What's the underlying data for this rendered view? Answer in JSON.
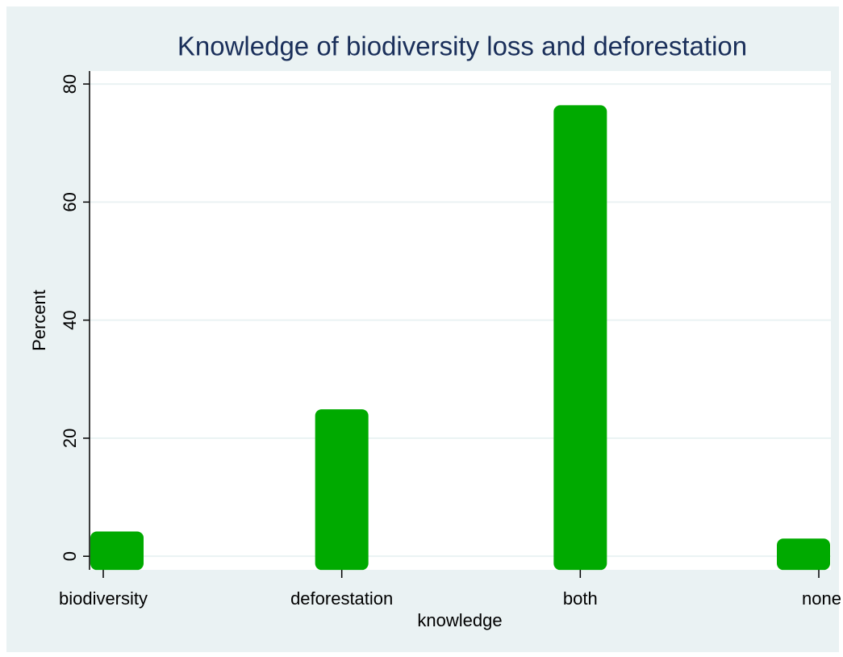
{
  "chart_data": {
    "type": "bar",
    "title": "Knowledge of biodiversity loss and deforestation",
    "x_label": "knowledge",
    "y_label": "Percent",
    "categories": [
      "biodiversity",
      "deforestation",
      "both",
      "none"
    ],
    "values": [
      4.2,
      24.9,
      76.4,
      3.0
    ],
    "color": "#00aa00",
    "ylim": [
      -2.3,
      82.2
    ],
    "yticks": [
      0,
      20,
      40,
      60,
      80
    ],
    "grid": true
  }
}
